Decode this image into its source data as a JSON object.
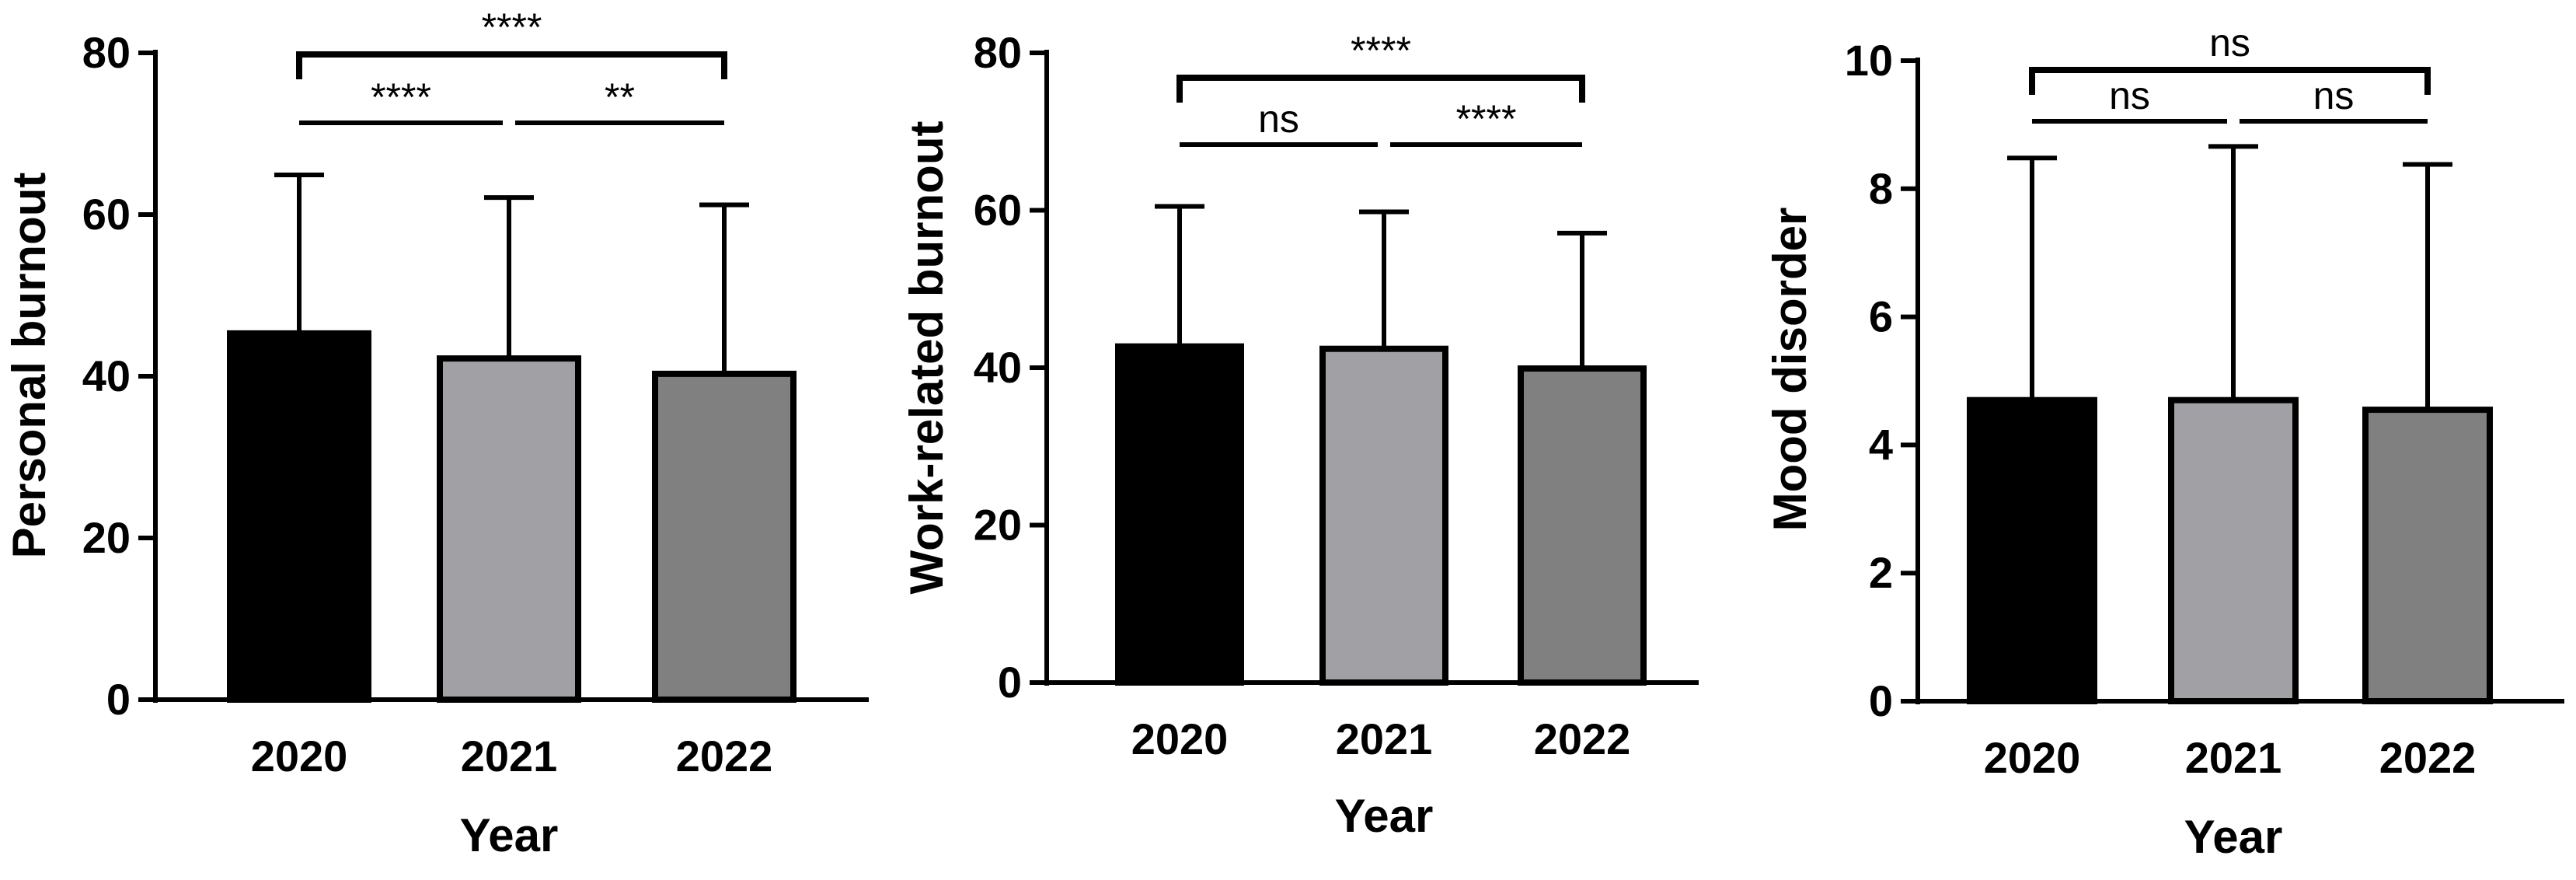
{
  "colors": {
    "bar_2020": "#000000",
    "bar_2021": "#a1a0a5",
    "bar_2022": "#808080",
    "stroke": "#000000",
    "background": "#ffffff"
  },
  "chart_data": [
    {
      "type": "bar",
      "title": "",
      "xlabel": "Year",
      "ylabel": "Personal burnout",
      "categories": [
        "2020",
        "2021",
        "2022"
      ],
      "values": [
        45.3,
        42.2,
        40.3
      ],
      "error_upper": [
        64.9,
        62.1,
        61.2
      ],
      "ylim": [
        0,
        80
      ],
      "yticks": [
        "0",
        "20",
        "40",
        "60",
        "80"
      ],
      "grid": false,
      "legend": "none",
      "comparisons": [
        {
          "from": "2020",
          "to": "2021",
          "label": "****"
        },
        {
          "from": "2021",
          "to": "2022",
          "label": "**"
        },
        {
          "from": "2020",
          "to": "2022",
          "label": "****"
        }
      ]
    },
    {
      "type": "bar",
      "title": "",
      "xlabel": "Year",
      "ylabel": "Work-related burnout",
      "categories": [
        "2020",
        "2021",
        "2022"
      ],
      "values": [
        42.7,
        42.4,
        39.9
      ],
      "error_upper": [
        60.5,
        59.8,
        57.1
      ],
      "ylim": [
        0,
        80
      ],
      "yticks": [
        "0",
        "20",
        "40",
        "60",
        "80"
      ],
      "grid": false,
      "legend": "none",
      "comparisons": [
        {
          "from": "2020",
          "to": "2021",
          "label": "ns"
        },
        {
          "from": "2021",
          "to": "2022",
          "label": "****"
        },
        {
          "from": "2020",
          "to": "2022",
          "label": "****"
        }
      ]
    },
    {
      "type": "bar",
      "title": "",
      "xlabel": "Year",
      "ylabel": "Mood disorder",
      "categories": [
        "2020",
        "2021",
        "2022"
      ],
      "values": [
        4.7,
        4.7,
        4.55
      ],
      "error_upper": [
        8.48,
        8.66,
        8.38
      ],
      "ylim": [
        0,
        10
      ],
      "yticks": [
        "0",
        "2",
        "4",
        "6",
        "8",
        "10"
      ],
      "grid": false,
      "legend": "none",
      "comparisons": [
        {
          "from": "2020",
          "to": "2021",
          "label": "ns"
        },
        {
          "from": "2021",
          "to": "2022",
          "label": "ns"
        },
        {
          "from": "2020",
          "to": "2022",
          "label": "ns"
        }
      ]
    }
  ]
}
